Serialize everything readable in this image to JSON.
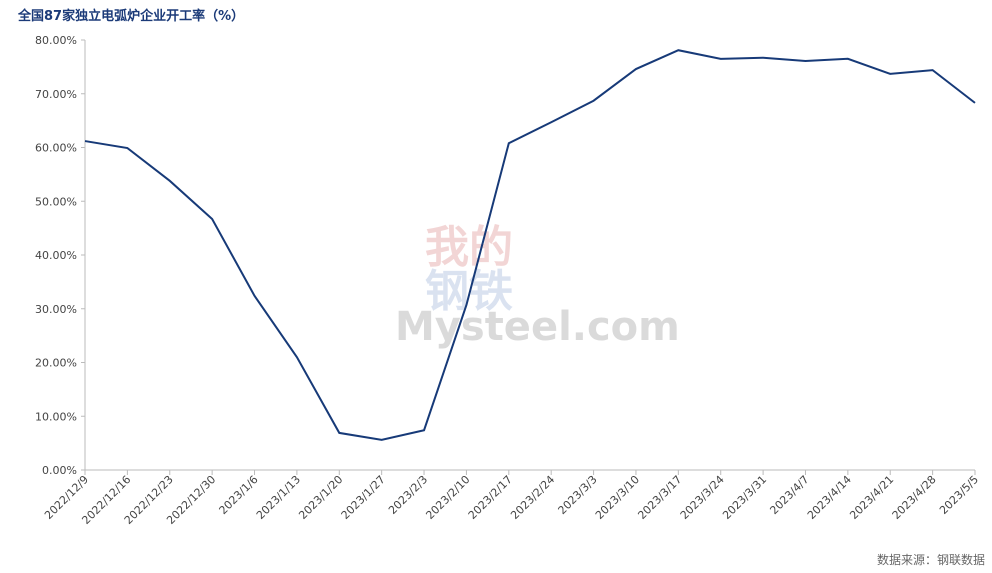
{
  "chart_data": {
    "type": "line",
    "title": "全国87家独立电弧炉企业开工率（%）",
    "source": "数据来源：钢联数据",
    "watermark": [
      "我的",
      "钢铁",
      "Mysteel.com"
    ],
    "categories": [
      "2022/12/9",
      "2022/12/16",
      "2022/12/23",
      "2022/12/30",
      "2023/1/6",
      "2023/1/13",
      "2023/1/20",
      "2023/1/27",
      "2023/2/3",
      "2023/2/10",
      "2023/2/17",
      "2023/2/24",
      "2023/3/3",
      "2023/3/10",
      "2023/3/17",
      "2023/3/24",
      "2023/3/31",
      "2023/4/7",
      "2023/4/14",
      "2023/4/21",
      "2023/4/28",
      "2023/5/5"
    ],
    "values": [
      61.2,
      59.9,
      53.8,
      46.7,
      32.4,
      21.0,
      6.9,
      5.6,
      7.4,
      30.7,
      60.8,
      64.7,
      68.7,
      74.6,
      78.1,
      76.5,
      76.7,
      76.1,
      76.5,
      73.7,
      74.4,
      68.3
    ],
    "color": "#173a78",
    "ylim": [
      0,
      80
    ],
    "yticks": [
      {
        "value": 0,
        "label": "0.00%"
      },
      {
        "value": 10,
        "label": "10.00%"
      },
      {
        "value": 20,
        "label": "20.00%"
      },
      {
        "value": 30,
        "label": "30.00%"
      },
      {
        "value": 40,
        "label": "40.00%"
      },
      {
        "value": 50,
        "label": "50.00%"
      },
      {
        "value": 60,
        "label": "60.00%"
      },
      {
        "value": 70,
        "label": "70.00%"
      },
      {
        "value": 80,
        "label": "80.00%"
      }
    ],
    "grid": false
  }
}
